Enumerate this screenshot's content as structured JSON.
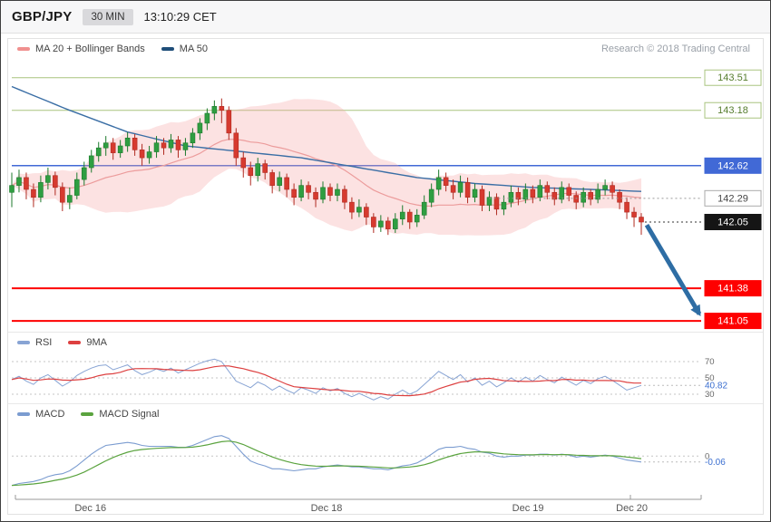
{
  "header": {
    "symbol": "GBP/JPY",
    "timeframe": "30 MIN",
    "timestamp": "13:10:29 CET"
  },
  "attribution": "Research © 2018 Trading Central",
  "legends": {
    "price": [
      {
        "label": "MA 20 + Bollinger Bands",
        "color": "#f0908f"
      },
      {
        "label": "MA 50",
        "color": "#1f4e79"
      }
    ],
    "rsi": [
      {
        "label": "RSI",
        "color": "#88a4d4"
      },
      {
        "label": "9MA",
        "color": "#dd4040"
      }
    ],
    "macd": [
      {
        "label": "MACD",
        "color": "#7b9cd0"
      },
      {
        "label": "MACD Signal",
        "color": "#5aa33e"
      }
    ]
  },
  "colors": {
    "candle_up": "#2f9e41",
    "candle_up_border": "#1c7a2c",
    "candle_down": "#d63a2f",
    "candle_down_border": "#b02a20",
    "band_fill": "rgba(246,164,164,0.32)",
    "ma20_line": "#ec9c9c",
    "ma50_line": "#3a6ea5",
    "resistance_line": "#a9c47f",
    "support_line": "#fe0000",
    "blue_line": "#4169d6",
    "rsi_line": "#88a4d4",
    "rsi_ma_line": "#dd4040",
    "macd_line": "#7b9cd0",
    "macd_signal_line": "#5aa33e",
    "value_label": "#3a6ed0",
    "label_styles": {
      "resistance": {
        "bg": "#ffffff",
        "border": "#a9c47f",
        "text": "#567d2e"
      },
      "blue": {
        "bg": "#4169d6",
        "border": "#4169d6",
        "text": "#ffffff"
      },
      "pivot": {
        "bg": "#ffffff",
        "border": "#aaaaaa",
        "text": "#444444"
      },
      "last": {
        "bg": "#151515",
        "border": "#151515",
        "text": "#ffffff"
      },
      "support": {
        "bg": "#fe0000",
        "border": "#fe0000",
        "text": "#ffffff"
      }
    }
  },
  "chart_data": {
    "type": "candlestick",
    "symbol": "GBP/JPY",
    "interval": "30 MIN",
    "price_axis": {
      "min": 140.95,
      "max": 143.7
    },
    "candles_format": "[open, high, low, close]",
    "candles": [
      [
        142.35,
        142.55,
        142.2,
        142.42
      ],
      [
        142.42,
        142.58,
        142.35,
        142.5
      ],
      [
        142.5,
        142.55,
        142.28,
        142.38
      ],
      [
        142.38,
        142.44,
        142.2,
        142.3
      ],
      [
        142.3,
        142.52,
        142.25,
        142.45
      ],
      [
        142.45,
        142.6,
        142.38,
        142.52
      ],
      [
        142.52,
        142.56,
        142.32,
        142.4
      ],
      [
        142.4,
        142.45,
        142.16,
        142.25
      ],
      [
        142.25,
        142.4,
        142.18,
        142.32
      ],
      [
        142.32,
        142.55,
        142.28,
        142.48
      ],
      [
        142.48,
        142.66,
        142.42,
        142.6
      ],
      [
        142.6,
        142.78,
        142.55,
        142.72
      ],
      [
        142.72,
        142.86,
        142.66,
        142.8
      ],
      [
        142.8,
        142.92,
        142.72,
        142.85
      ],
      [
        142.85,
        142.9,
        142.68,
        142.75
      ],
      [
        142.75,
        142.88,
        142.7,
        142.82
      ],
      [
        142.82,
        142.96,
        142.76,
        142.9
      ],
      [
        142.9,
        142.94,
        142.72,
        142.78
      ],
      [
        142.78,
        142.84,
        142.62,
        142.7
      ],
      [
        142.7,
        142.82,
        142.64,
        142.76
      ],
      [
        142.76,
        142.92,
        142.7,
        142.85
      ],
      [
        142.85,
        142.9,
        142.73,
        142.8
      ],
      [
        142.8,
        142.94,
        142.75,
        142.88
      ],
      [
        142.88,
        142.92,
        142.7,
        142.78
      ],
      [
        142.78,
        142.9,
        142.72,
        142.85
      ],
      [
        142.85,
        143.0,
        142.8,
        142.95
      ],
      [
        142.95,
        143.1,
        142.88,
        143.05
      ],
      [
        143.05,
        143.2,
        142.98,
        143.15
      ],
      [
        143.15,
        143.28,
        143.08,
        143.22
      ],
      [
        143.22,
        143.3,
        143.05,
        143.18
      ],
      [
        143.18,
        143.22,
        142.88,
        142.95
      ],
      [
        142.95,
        143.0,
        142.62,
        142.7
      ],
      [
        142.7,
        142.76,
        142.5,
        142.6
      ],
      [
        142.6,
        142.66,
        142.42,
        142.52
      ],
      [
        142.52,
        142.7,
        142.46,
        142.64
      ],
      [
        142.64,
        142.68,
        142.48,
        142.55
      ],
      [
        142.55,
        142.58,
        142.34,
        142.42
      ],
      [
        142.42,
        142.56,
        142.36,
        142.5
      ],
      [
        142.5,
        142.54,
        142.3,
        142.38
      ],
      [
        142.38,
        142.44,
        142.22,
        142.3
      ],
      [
        142.3,
        142.48,
        142.26,
        142.42
      ],
      [
        142.42,
        142.46,
        142.28,
        142.35
      ],
      [
        142.35,
        142.4,
        142.2,
        142.28
      ],
      [
        142.28,
        142.46,
        142.24,
        142.4
      ],
      [
        142.4,
        142.44,
        142.26,
        142.32
      ],
      [
        142.32,
        142.44,
        142.26,
        142.38
      ],
      [
        142.38,
        142.42,
        142.18,
        142.25
      ],
      [
        142.25,
        142.3,
        142.08,
        142.15
      ],
      [
        142.15,
        142.28,
        142.1,
        142.2
      ],
      [
        142.2,
        142.24,
        142.02,
        142.1
      ],
      [
        142.1,
        142.14,
        141.94,
        142.0
      ],
      [
        142.0,
        142.12,
        141.95,
        142.06
      ],
      [
        142.06,
        142.1,
        141.92,
        141.98
      ],
      [
        141.98,
        142.14,
        141.94,
        142.08
      ],
      [
        142.08,
        142.22,
        142.02,
        142.15
      ],
      [
        142.15,
        142.18,
        141.98,
        142.05
      ],
      [
        142.05,
        142.18,
        142.0,
        142.12
      ],
      [
        142.12,
        142.32,
        142.08,
        142.25
      ],
      [
        142.25,
        142.44,
        142.2,
        142.38
      ],
      [
        142.38,
        142.58,
        142.32,
        142.5
      ],
      [
        142.5,
        142.55,
        142.36,
        142.42
      ],
      [
        142.42,
        142.48,
        142.28,
        142.35
      ],
      [
        142.35,
        142.52,
        142.3,
        142.45
      ],
      [
        142.45,
        142.5,
        142.24,
        142.3
      ],
      [
        142.3,
        142.44,
        142.25,
        142.38
      ],
      [
        142.38,
        142.42,
        142.16,
        142.22
      ],
      [
        142.22,
        142.36,
        142.16,
        142.3
      ],
      [
        142.3,
        142.34,
        142.12,
        142.18
      ],
      [
        142.18,
        142.32,
        142.12,
        142.25
      ],
      [
        142.25,
        142.42,
        142.2,
        142.35
      ],
      [
        142.35,
        142.4,
        142.22,
        142.28
      ],
      [
        142.28,
        142.44,
        142.24,
        142.38
      ],
      [
        142.38,
        142.42,
        142.24,
        142.3
      ],
      [
        142.3,
        142.48,
        142.26,
        142.42
      ],
      [
        142.42,
        142.46,
        142.28,
        142.35
      ],
      [
        142.35,
        142.4,
        142.22,
        142.28
      ],
      [
        142.28,
        142.46,
        142.24,
        142.4
      ],
      [
        142.4,
        142.44,
        142.26,
        142.32
      ],
      [
        142.32,
        142.36,
        142.18,
        142.25
      ],
      [
        142.25,
        142.4,
        142.2,
        142.35
      ],
      [
        142.35,
        142.38,
        142.22,
        142.28
      ],
      [
        142.28,
        142.44,
        142.24,
        142.38
      ],
      [
        142.38,
        142.48,
        142.32,
        142.42
      ],
      [
        142.42,
        142.46,
        142.28,
        142.35
      ],
      [
        142.35,
        142.38,
        142.18,
        142.25
      ],
      [
        142.25,
        142.3,
        142.08,
        142.15
      ],
      [
        142.15,
        142.2,
        142.0,
        142.1
      ],
      [
        142.1,
        142.14,
        141.92,
        142.05
      ]
    ],
    "ma50_keypoints": [
      [
        0,
        143.42
      ],
      [
        8,
        143.18
      ],
      [
        16,
        142.96
      ],
      [
        24,
        142.82
      ],
      [
        32,
        142.76
      ],
      [
        40,
        142.7
      ],
      [
        48,
        142.6
      ],
      [
        56,
        142.5
      ],
      [
        64,
        142.44
      ],
      [
        72,
        142.4
      ],
      [
        80,
        142.38
      ],
      [
        87,
        142.36
      ]
    ],
    "levels": [
      {
        "price": 143.51,
        "label": "143.51",
        "kind": "resistance"
      },
      {
        "price": 143.18,
        "label": "143.18",
        "kind": "resistance"
      },
      {
        "price": 142.62,
        "label": "142.62",
        "kind": "blue"
      },
      {
        "price": 142.29,
        "label": "142.29",
        "kind": "pivot"
      },
      {
        "price": 142.05,
        "label": "142.05",
        "kind": "last"
      },
      {
        "price": 141.38,
        "label": "141.38",
        "kind": "support"
      },
      {
        "price": 141.05,
        "label": "141.05",
        "kind": "support"
      }
    ],
    "last_price": 142.05,
    "arrow": {
      "from_price": 142.02,
      "to_price": 141.12,
      "color": "#2e6da4"
    },
    "rsi": {
      "period_guidelines": [
        70,
        50,
        30
      ],
      "current": 40.82,
      "current_label": "40.82",
      "ma_period": 9,
      "values": [
        48,
        52,
        46,
        42,
        50,
        54,
        47,
        40,
        45,
        53,
        58,
        62,
        65,
        66,
        60,
        63,
        66,
        59,
        54,
        57,
        61,
        58,
        62,
        56,
        60,
        64,
        68,
        71,
        73,
        70,
        58,
        46,
        42,
        38,
        45,
        41,
        35,
        40,
        35,
        31,
        38,
        35,
        31,
        38,
        34,
        37,
        31,
        27,
        31,
        27,
        23,
        27,
        24,
        30,
        35,
        30,
        34,
        42,
        50,
        58,
        53,
        48,
        54,
        45,
        50,
        41,
        46,
        39,
        44,
        50,
        45,
        51,
        46,
        53,
        48,
        44,
        51,
        46,
        41,
        47,
        43,
        49,
        52,
        47,
        41,
        35,
        38,
        40.82
      ]
    },
    "macd": {
      "zero_label": "0",
      "current": -0.06,
      "current_label": "-0.06",
      "signal_period": 9,
      "values": [
        -0.3,
        -0.28,
        -0.27,
        -0.26,
        -0.24,
        -0.21,
        -0.19,
        -0.18,
        -0.15,
        -0.1,
        -0.04,
        0.02,
        0.07,
        0.11,
        0.12,
        0.13,
        0.14,
        0.13,
        0.11,
        0.1,
        0.1,
        0.1,
        0.1,
        0.09,
        0.09,
        0.11,
        0.14,
        0.17,
        0.2,
        0.21,
        0.18,
        0.1,
        0.02,
        -0.05,
        -0.08,
        -0.1,
        -0.13,
        -0.13,
        -0.14,
        -0.15,
        -0.14,
        -0.13,
        -0.13,
        -0.11,
        -0.1,
        -0.09,
        -0.1,
        -0.11,
        -0.11,
        -0.12,
        -0.13,
        -0.13,
        -0.14,
        -0.12,
        -0.1,
        -0.09,
        -0.07,
        -0.03,
        0.02,
        0.07,
        0.09,
        0.09,
        0.1,
        0.08,
        0.07,
        0.04,
        0.03,
        0.0,
        -0.01,
        0.0,
        0.0,
        0.01,
        0.01,
        0.02,
        0.02,
        0.01,
        0.02,
        0.01,
        -0.01,
        0.0,
        -0.01,
        0.0,
        0.01,
        0.0,
        -0.02,
        -0.04,
        -0.05,
        -0.06
      ]
    },
    "xaxis": [
      {
        "label": "Dec 16",
        "pos": 0.125
      },
      {
        "label": "Dec 18",
        "pos": 0.5
      },
      {
        "label": "Dec 19",
        "pos": 0.82
      },
      {
        "label": "Dec 20",
        "pos": 0.985
      }
    ]
  }
}
